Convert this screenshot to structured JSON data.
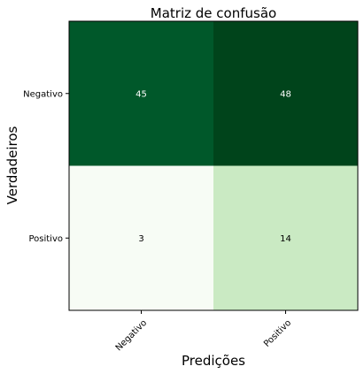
{
  "chart_data": {
    "type": "heatmap",
    "title": "Matriz de confusão",
    "xlabel": "Predições",
    "ylabel": "Verdadeiros",
    "x_categories": [
      "Negativo",
      "Positivo"
    ],
    "y_categories": [
      "Negativo",
      "Positivo"
    ],
    "values": [
      [
        45,
        48
      ],
      [
        3,
        14
      ]
    ],
    "colormap": "Greens",
    "value_range": [
      3,
      48
    ],
    "colors": {
      "cell_0_0": "#00582A",
      "cell_0_1": "#00441B",
      "cell_1_0": "#F7FCF5",
      "cell_1_1": "#CAEAC3",
      "text_on_dark": "#ffffff",
      "text_on_light": "#000000",
      "axis": "#000000"
    },
    "grid": false,
    "legend": "none"
  }
}
